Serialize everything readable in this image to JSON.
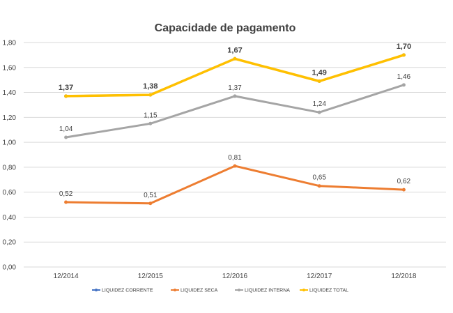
{
  "chart_data": {
    "type": "line",
    "title": "Capacidade de pagamento",
    "categories": [
      "12/2014",
      "12/2015",
      "12/2016",
      "12/2017",
      "12/2018"
    ],
    "ylim": [
      0,
      1.8
    ],
    "yticks": [
      "0,00",
      "0,20",
      "0,40",
      "0,60",
      "0,80",
      "1,00",
      "1,20",
      "1,40",
      "1,60",
      "1,80"
    ],
    "grid": true,
    "legend_position": "bottom",
    "series": [
      {
        "name": "LIQUIDEZ CORRENTE",
        "color": "#4472c4",
        "values": [
          1.37,
          1.38,
          1.67,
          1.49,
          1.7
        ],
        "labels": [],
        "bold": false,
        "width": 3
      },
      {
        "name": "LIQUIDEZ SECA",
        "color": "#ed7d31",
        "values": [
          0.52,
          0.51,
          0.81,
          0.65,
          0.62
        ],
        "labels": [
          "0,52",
          "0,51",
          "0,81",
          "0,65",
          "0,62"
        ],
        "bold": false,
        "width": 3
      },
      {
        "name": "LIQUIDEZ INTERNA",
        "color": "#a5a5a5",
        "values": [
          1.04,
          1.15,
          1.37,
          1.24,
          1.46
        ],
        "labels": [
          "1,04",
          "1,15",
          "1,37",
          "1,24",
          "1,46"
        ],
        "bold": false,
        "width": 3
      },
      {
        "name": "LIQUIDEZ TOTAL",
        "color": "#ffc000",
        "values": [
          1.37,
          1.38,
          1.67,
          1.49,
          1.7
        ],
        "labels": [
          "1,37",
          "1,38",
          "1,67",
          "1,49",
          "1,70"
        ],
        "bold": true,
        "width": 3.5
      }
    ]
  }
}
